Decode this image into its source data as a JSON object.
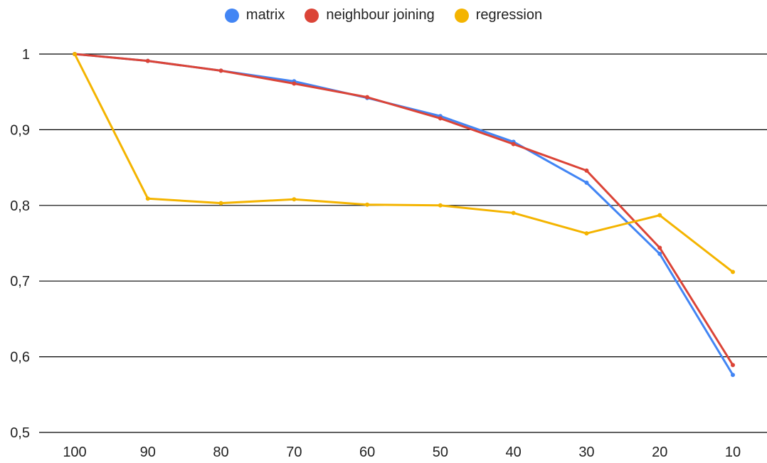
{
  "chart_data": {
    "type": "line",
    "categories": [
      "100",
      "90",
      "80",
      "70",
      "60",
      "50",
      "40",
      "30",
      "20",
      "10"
    ],
    "series": [
      {
        "name": "matrix",
        "color": "#4285f4",
        "values": [
          1.0,
          0.991,
          0.978,
          0.964,
          0.942,
          0.918,
          0.884,
          0.83,
          0.736,
          0.576
        ]
      },
      {
        "name": "neighbour joining",
        "color": "#db4437",
        "values": [
          1.0,
          0.991,
          0.978,
          0.961,
          0.943,
          0.915,
          0.881,
          0.846,
          0.744,
          0.589
        ]
      },
      {
        "name": "regression",
        "color": "#f4b400",
        "values": [
          1.0,
          0.809,
          0.803,
          0.808,
          0.801,
          0.8,
          0.79,
          0.763,
          0.787,
          0.712
        ]
      }
    ],
    "y_ticks": [
      "0,5",
      "0,6",
      "0,7",
      "0,8",
      "0,9",
      "1"
    ],
    "ylim": [
      0.5,
      1.0
    ],
    "grid": true,
    "legend_position": "top"
  }
}
